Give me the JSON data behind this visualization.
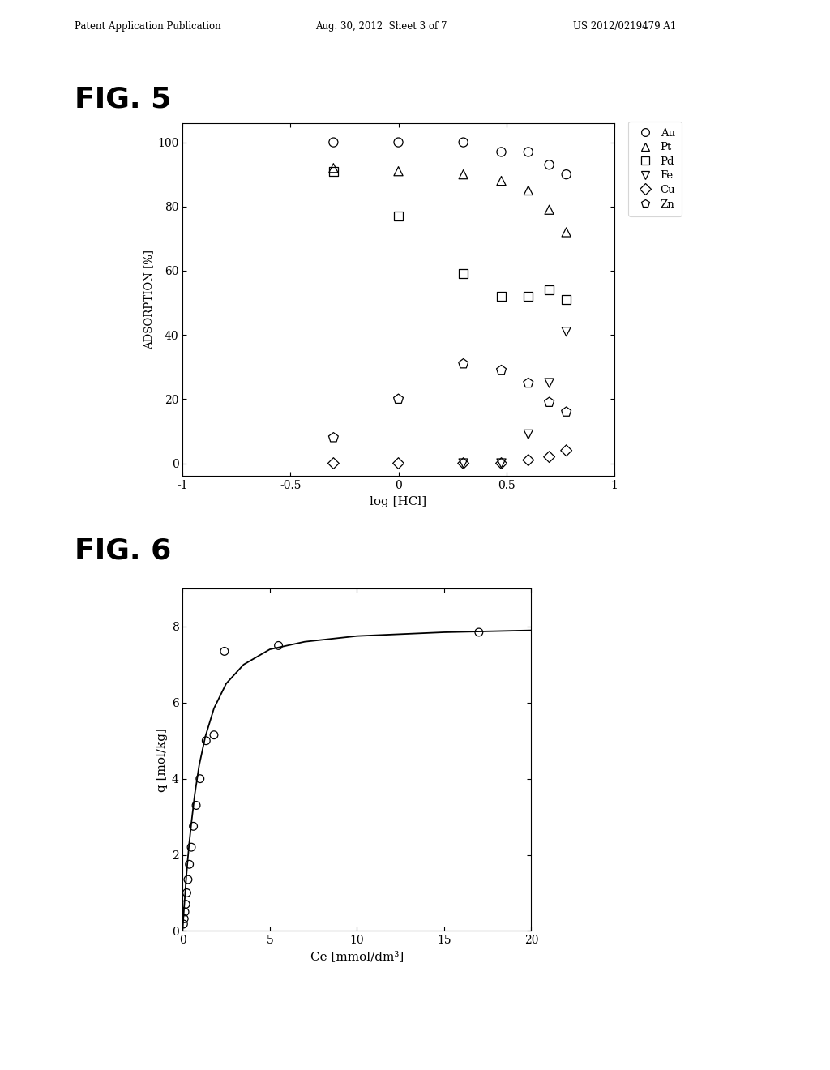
{
  "header_left": "Patent Application Publication",
  "header_center": "Aug. 30, 2012  Sheet 3 of 7",
  "header_right": "US 2012/0219479 A1",
  "fig5": {
    "title": "FIG. 5",
    "xlabel": "log [HCl]",
    "ylabel": "ADSORPTION [%]",
    "xlim": [
      -1,
      1
    ],
    "ylim": [
      -4,
      106
    ],
    "xticks": [
      -1,
      -0.5,
      0,
      0.5,
      1
    ],
    "yticks": [
      0,
      20,
      40,
      60,
      80,
      100
    ],
    "Au": {
      "x": [
        -0.301,
        0.0,
        0.301,
        0.477,
        0.602,
        0.699,
        0.778
      ],
      "y": [
        100,
        100,
        100,
        97,
        97,
        93,
        90
      ]
    },
    "Pt": {
      "x": [
        -0.301,
        0.0,
        0.301,
        0.477,
        0.602,
        0.699,
        0.778
      ],
      "y": [
        92,
        91,
        90,
        88,
        85,
        79,
        72
      ]
    },
    "Pd": {
      "x": [
        -0.301,
        0.0,
        0.301,
        0.477,
        0.602,
        0.699,
        0.778
      ],
      "y": [
        91,
        77,
        59,
        52,
        52,
        54,
        51
      ]
    },
    "Fe": {
      "x": [
        0.301,
        0.477,
        0.602,
        0.699,
        0.778
      ],
      "y": [
        0,
        0,
        9,
        25,
        41
      ]
    },
    "Cu": {
      "x": [
        -0.301,
        0.0,
        0.301,
        0.477,
        0.602,
        0.699,
        0.778
      ],
      "y": [
        0,
        0,
        0,
        0,
        1,
        2,
        4
      ]
    },
    "Zn": {
      "x": [
        -0.301,
        0.0,
        0.301,
        0.477,
        0.602,
        0.699,
        0.778
      ],
      "y": [
        8,
        20,
        31,
        29,
        25,
        19,
        16
      ]
    },
    "legend_order": [
      "Au",
      "Pt",
      "Pd",
      "Fe",
      "Cu",
      "Zn"
    ],
    "legend_labels": [
      "Au",
      "Pt",
      "Pd",
      "Fe",
      "Cu",
      "Zn"
    ],
    "legend_markers": [
      "o",
      "^",
      "s",
      "v",
      "D",
      "p"
    ]
  },
  "fig6": {
    "title": "FIG. 6",
    "xlabel": "Ce [mmol/dm³]",
    "ylabel": "q [mol/kg]",
    "xlim": [
      0,
      20
    ],
    "ylim": [
      0,
      9
    ],
    "xticks": [
      0,
      5,
      10,
      15,
      20
    ],
    "yticks": [
      0,
      2,
      4,
      6,
      8
    ],
    "scatter_x": [
      0.05,
      0.09,
      0.13,
      0.18,
      0.24,
      0.31,
      0.39,
      0.5,
      0.62,
      0.78,
      1.0,
      1.35,
      1.8,
      2.4,
      5.5,
      17.0
    ],
    "scatter_y": [
      0.18,
      0.32,
      0.5,
      0.7,
      1.0,
      1.35,
      1.75,
      2.2,
      2.75,
      3.3,
      4.0,
      5.0,
      5.15,
      7.35,
      7.5,
      7.85
    ],
    "curve_x": [
      0.001,
      0.02,
      0.04,
      0.07,
      0.1,
      0.15,
      0.2,
      0.28,
      0.38,
      0.52,
      0.7,
      0.95,
      1.3,
      1.8,
      2.5,
      3.5,
      5.0,
      7.0,
      10.0,
      15.0,
      20.0
    ],
    "curve_y": [
      0.01,
      0.15,
      0.3,
      0.5,
      0.7,
      1.0,
      1.35,
      1.8,
      2.3,
      2.9,
      3.6,
      4.35,
      5.1,
      5.85,
      6.5,
      7.0,
      7.4,
      7.6,
      7.75,
      7.85,
      7.9
    ]
  },
  "bg_color": "#ffffff",
  "text_color": "#000000"
}
